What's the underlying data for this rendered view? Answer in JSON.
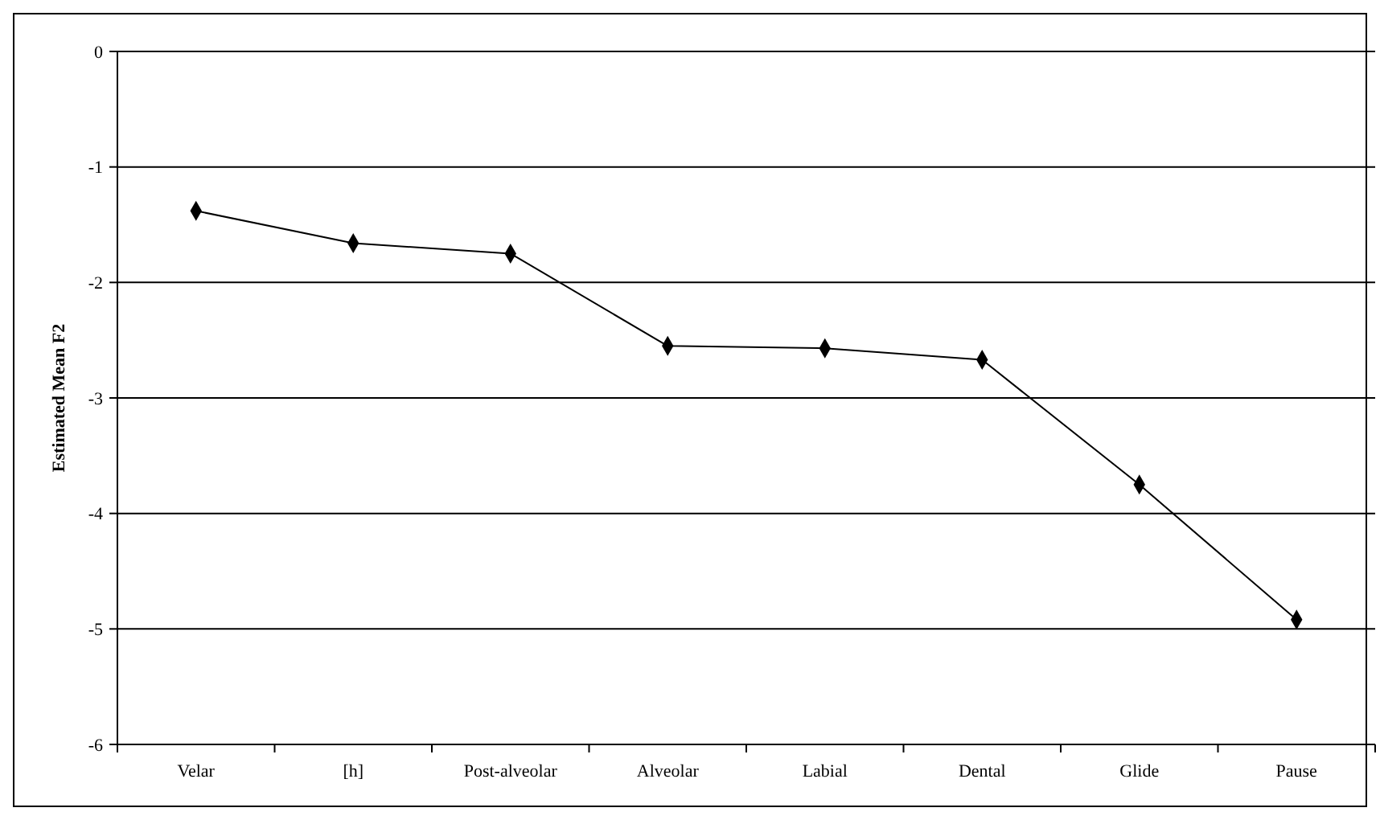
{
  "chart_data": {
    "type": "line",
    "ylabel": "Estimated Mean F2",
    "categories": [
      "Velar",
      "[h]",
      "Post-alveolar",
      "Alveolar",
      "Labial",
      "Dental",
      "Glide",
      "Pause"
    ],
    "series": [
      {
        "color": "#000000",
        "values": [
          -1.38,
          -1.66,
          -1.75,
          -2.55,
          -2.57,
          -2.67,
          -3.75,
          -4.92
        ]
      }
    ],
    "ylim": [
      -6,
      0
    ],
    "yticks": [
      -6,
      -5,
      -4,
      -3,
      -2,
      -1,
      0
    ],
    "grid": "y",
    "marker": "diamond",
    "line_style": "solid"
  }
}
